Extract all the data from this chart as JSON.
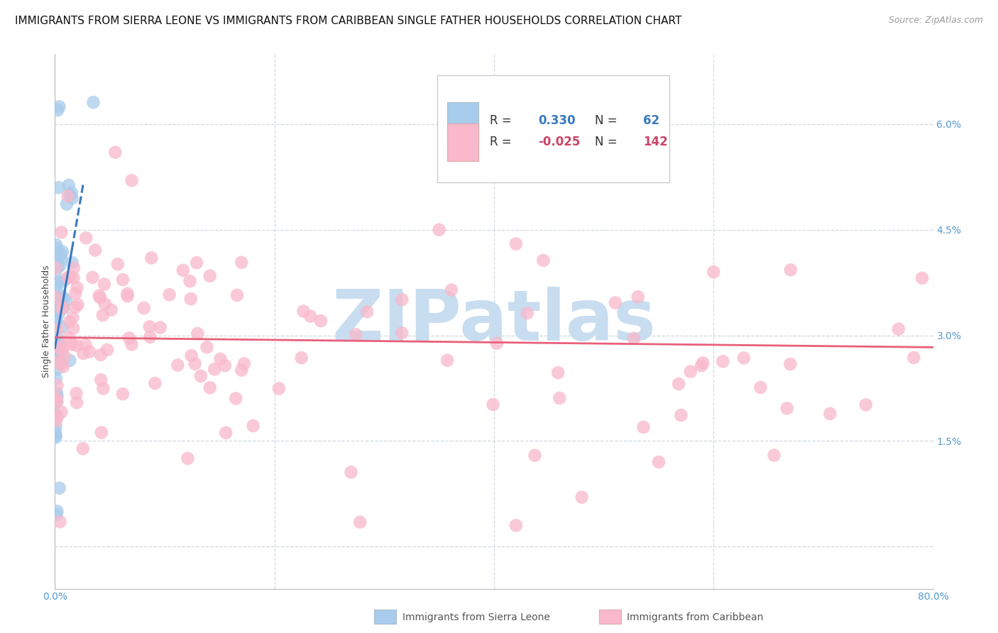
{
  "title": "IMMIGRANTS FROM SIERRA LEONE VS IMMIGRANTS FROM CARIBBEAN SINGLE FATHER HOUSEHOLDS CORRELATION CHART",
  "source": "Source: ZipAtlas.com",
  "ylabel": "Single Father Households",
  "xmin": 0.0,
  "xmax": 80.0,
  "ymin": -0.6,
  "ymax": 7.0,
  "sierra_leone_R": 0.33,
  "sierra_leone_N": 62,
  "caribbean_R": -0.025,
  "caribbean_N": 142,
  "sierra_leone_color": "#a8ccec",
  "caribbean_color": "#f9b8cb",
  "sierra_leone_line_color": "#3a7abf",
  "caribbean_line_color": "#e8607a",
  "title_fontsize": 11.0,
  "source_fontsize": 9,
  "axis_label_fontsize": 9,
  "tick_fontsize": 10,
  "watermark_text": "ZIPatlas",
  "watermark_color": "#c8ddf0",
  "watermark_fontsize": 72,
  "right_ytick_vals": [
    1.5,
    3.0,
    4.5,
    6.0
  ],
  "right_ytick_labels": [
    "1.5%",
    "3.0%",
    "4.5%",
    "6.0%"
  ],
  "ytick_color": "#5599cc",
  "xtick_color": "#5599cc",
  "legend_label_1": "Immigrants from Sierra Leone",
  "legend_label_2": "Immigrants from Caribbean",
  "sl_line_x0": 0.0,
  "sl_line_x1": 1.55,
  "sl_line_y0": 2.82,
  "sl_line_y1": 4.22,
  "sl_dash_x0": 1.55,
  "sl_dash_x1": 2.6,
  "sl_dash_y0": 4.22,
  "sl_dash_y1": 5.17,
  "car_line_x0": 0.0,
  "car_line_x1": 80.0,
  "car_line_y0": 2.97,
  "car_line_y1": 2.83
}
